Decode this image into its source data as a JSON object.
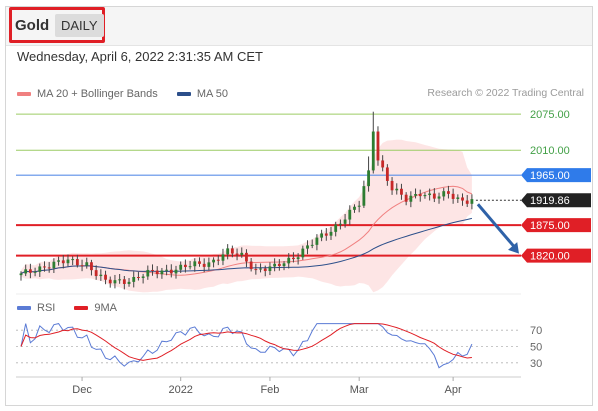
{
  "header": {
    "instrument": "Gold",
    "period": "DAILY",
    "timestamp": "Wednesday, April 6, 2022 2:31:35 AM CET"
  },
  "legend": {
    "items": [
      {
        "label": "MA 20 + Bollinger Bands",
        "color": "#f08080"
      },
      {
        "label": "MA 50",
        "color": "#2c4f8a"
      }
    ],
    "credit": "Research © 2022 Trading Central"
  },
  "oscillator_legend": {
    "items": [
      {
        "label": "RSI",
        "color": "#5b7bd5"
      },
      {
        "label": "9MA",
        "color": "#e01f26"
      }
    ]
  },
  "chart_data": [
    {
      "type": "candlestick",
      "ylim": [
        1760,
        2095
      ],
      "x_tick_labels": [
        "Dec",
        "2022",
        "Feb",
        "Mar",
        "Apr"
      ],
      "levels": [
        {
          "value": 2075.0,
          "label": "2075.00",
          "style": "thin",
          "color": "#9ccc65",
          "text_color": "#43a047"
        },
        {
          "value": 2010.0,
          "label": "2010.00",
          "style": "thin",
          "color": "#9ccc65",
          "text_color": "#43a047"
        },
        {
          "value": 1965.0,
          "label": "1965.00",
          "style": "medium",
          "color": "#5b8fe8",
          "tag_color": "#2f7bea"
        },
        {
          "value": 1875.0,
          "label": "1875.00",
          "style": "thick",
          "color": "#e01f26",
          "tag_color": "#e01f26"
        },
        {
          "value": 1820.0,
          "label": "1820.00",
          "style": "thick",
          "color": "#e01f26",
          "tag_color": "#e01f26"
        }
      ],
      "last_price": {
        "value": 1919.86,
        "label": "1919.86"
      },
      "forecast_arrow": {
        "from": 1919.86,
        "to": 1820.0
      }
    },
    {
      "type": "line",
      "ylim": [
        20,
        80
      ],
      "y_tick_labels": [
        {
          "value": 70,
          "label": "70"
        },
        {
          "value": 50,
          "label": "50"
        },
        {
          "value": 30,
          "label": "30"
        }
      ],
      "series": [
        {
          "name": "RSI"
        },
        {
          "name": "9MA"
        }
      ]
    }
  ]
}
